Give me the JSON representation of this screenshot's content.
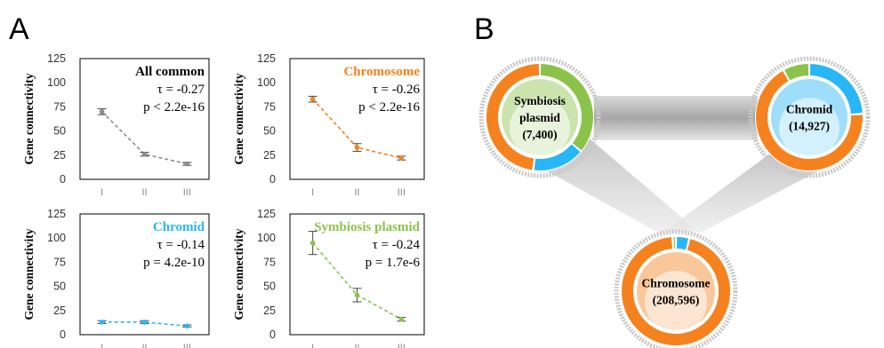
{
  "panels": {
    "a": "A",
    "b": "B"
  },
  "chart_data": [
    {
      "type": "line",
      "title": "All common",
      "title_color": "#000000",
      "line_color": "#8c8c8c",
      "categories": [
        "I",
        "II",
        "III"
      ],
      "values": [
        70,
        26,
        16
      ],
      "errors": [
        3,
        2,
        1.5
      ],
      "ylabel": "Gene connectivity",
      "ylim": [
        0,
        125
      ],
      "yticks": [
        "0",
        "25",
        "50",
        "75",
        "100",
        "125"
      ],
      "stats": [
        "τ = -0.27",
        "p < 2.2e-16"
      ]
    },
    {
      "type": "line",
      "title": "Chromosome",
      "title_color": "#f5821f",
      "line_color": "#f5821f",
      "categories": [
        "I",
        "II",
        "III"
      ],
      "values": [
        83,
        33,
        22
      ],
      "errors": [
        3,
        4,
        2
      ],
      "ylabel": "Gene connectivity",
      "ylim": [
        0,
        125
      ],
      "yticks": [
        "0",
        "25",
        "50",
        "75",
        "100",
        "125"
      ],
      "stats": [
        "τ = -0.26",
        "p < 2.2e-16"
      ]
    },
    {
      "type": "line",
      "title": "Chromid",
      "title_color": "#29b6f6",
      "line_color": "#29b6f6",
      "categories": [
        "I",
        "II",
        "III"
      ],
      "values": [
        13,
        13,
        9
      ],
      "errors": [
        1.5,
        1.5,
        1
      ],
      "ylabel": "Gene connectivity",
      "ylim": [
        0,
        125
      ],
      "yticks": [
        "0",
        "25",
        "50",
        "75",
        "100",
        "125"
      ],
      "stats": [
        "τ = -0.14",
        "p = 4.2e-10"
      ]
    },
    {
      "type": "line",
      "title": "Symbiosis plasmid",
      "title_color": "#8bc34a",
      "line_color": "#8bc34a",
      "categories": [
        "I",
        "II",
        "III"
      ],
      "values": [
        95,
        41,
        16
      ],
      "errors": [
        12,
        7,
        2
      ],
      "ylabel": "Gene connectivity",
      "ylim": [
        0,
        125
      ],
      "yticks": [
        "0",
        "25",
        "50",
        "75",
        "100",
        "125"
      ],
      "stats": [
        "τ = -0.24",
        "p = 1.7e-6"
      ]
    },
    {
      "type": "pie",
      "nodes": [
        {
          "id": "symbiosis",
          "label_lines": [
            "Symbiosis",
            "plasmid",
            "(7,400)"
          ],
          "ring": [
            {
              "name": "Symbiosis plasmid",
              "fraction": 0.36,
              "color": "#8bc34a"
            },
            {
              "name": "Chromid",
              "fraction": 0.16,
              "color": "#29b6f6"
            },
            {
              "name": "Chromosome",
              "fraction": 0.48,
              "color": "#f5821f"
            }
          ],
          "inner_color": "#8bc34a"
        },
        {
          "id": "chromid",
          "label_lines": [
            "Chromid",
            "(14,927)"
          ],
          "ring": [
            {
              "name": "Chromid",
              "fraction": 0.24,
              "color": "#29b6f6"
            },
            {
              "name": "Chromosome",
              "fraction": 0.68,
              "color": "#f5821f"
            },
            {
              "name": "Symbiosis plasmid",
              "fraction": 0.08,
              "color": "#8bc34a"
            }
          ],
          "inner_color": "#29b6f6"
        },
        {
          "id": "chromosome",
          "label_lines": [
            "Chromosome",
            "(208,596)"
          ],
          "ring": [
            {
              "name": "Chromid",
              "fraction": 0.04,
              "color": "#29b6f6"
            },
            {
              "name": "Chromosome",
              "fraction": 0.95,
              "color": "#f5821f"
            },
            {
              "name": "Symbiosis plasmid",
              "fraction": 0.01,
              "color": "#8bc34a"
            }
          ],
          "inner_color": "#f5821f"
        }
      ]
    }
  ]
}
